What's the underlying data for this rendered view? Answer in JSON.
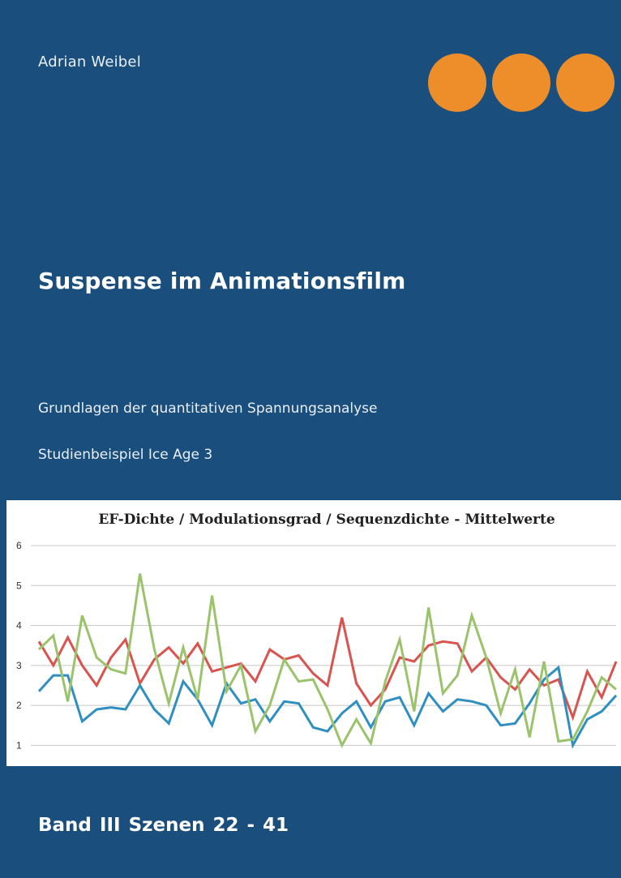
{
  "cover": {
    "author": "Adrian Weibel",
    "title": "Suspense im Animationsfilm",
    "subtitle": "Grundlagen der quantitativen Spannungsanalyse",
    "study": "Studienbeispiel Ice Age 3",
    "band": "Band III  Szenen 22 - 41",
    "background_color": "#1a4f7d",
    "dot_color": "#ee8e2a",
    "dot_count": 3
  },
  "chart_data": {
    "type": "line",
    "title": "EF-Dichte / Modulationsgrad / Sequenzdichte - Mittelwerte",
    "xlabel": "",
    "ylabel": "",
    "ylim": [
      0.5,
      6
    ],
    "yticks": [
      1,
      2,
      3,
      4,
      5,
      6
    ],
    "grid": true,
    "legend": "none",
    "series": [
      {
        "color": "#d9534f",
        "values": [
          3.6,
          3.0,
          3.7,
          3.0,
          2.5,
          3.2,
          3.65,
          2.55,
          3.15,
          3.45,
          3.05,
          3.55,
          2.85,
          2.95,
          3.05,
          2.6,
          3.4,
          3.15,
          3.25,
          2.8,
          2.5,
          4.2,
          2.55,
          2.0,
          2.4,
          3.2,
          3.1,
          3.5,
          3.6,
          3.55,
          2.85,
          3.2,
          2.7,
          2.4,
          2.9,
          2.5,
          2.65,
          1.7,
          2.85,
          2.2,
          3.1
        ]
      },
      {
        "color": "#2e8fc0",
        "values": [
          2.35,
          2.75,
          2.75,
          1.6,
          1.9,
          1.95,
          1.9,
          2.5,
          1.9,
          1.55,
          2.6,
          2.15,
          1.5,
          2.55,
          2.05,
          2.15,
          1.6,
          2.1,
          2.05,
          1.45,
          1.35,
          1.8,
          2.1,
          1.45,
          2.1,
          2.2,
          1.5,
          2.3,
          1.85,
          2.15,
          2.1,
          2.0,
          1.5,
          1.55,
          2.05,
          2.65,
          2.95,
          1.0,
          1.65,
          1.85,
          2.25
        ]
      },
      {
        "color": "#9bc36b",
        "values": [
          3.4,
          3.75,
          2.1,
          4.25,
          3.2,
          2.9,
          2.8,
          5.3,
          3.4,
          2.05,
          3.45,
          2.15,
          4.75,
          2.35,
          3.0,
          1.35,
          2.0,
          3.15,
          2.6,
          2.65,
          1.9,
          1.0,
          1.65,
          1.05,
          2.6,
          3.65,
          1.85,
          4.45,
          2.3,
          2.75,
          4.25,
          3.2,
          1.8,
          2.9,
          1.2,
          3.1,
          1.1,
          1.15,
          1.85,
          2.7,
          2.4
        ]
      }
    ]
  }
}
